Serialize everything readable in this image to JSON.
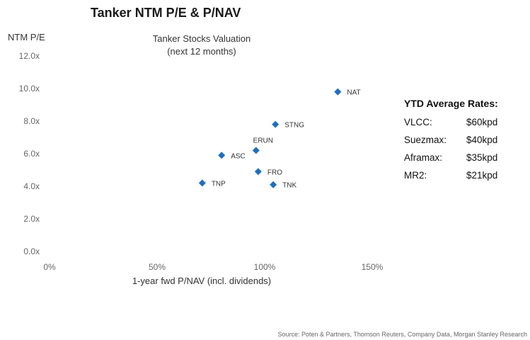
{
  "title": "Tanker NTM P/E & P/NAV",
  "source": "Source: Poten & Partners, Thomson Reuters, Company Data, Morgan Stanley Research",
  "chart_data": {
    "type": "scatter",
    "title": "Tanker Stocks Valuation",
    "subtitle": "(next 12 months)",
    "xlabel": "1-year fwd P/NAV (incl. dividends)",
    "ylabel": "NTM P/E",
    "xlim": [
      0,
      150
    ],
    "ylim": [
      0,
      12
    ],
    "x_ticks": [
      "0%",
      "50%",
      "100%",
      "150%"
    ],
    "y_ticks": [
      "0.0x",
      "2.0x",
      "4.0x",
      "6.0x",
      "8.0x",
      "10.0x",
      "12.0x"
    ],
    "grid": false,
    "marker": "diamond",
    "color": "#1f6fbf",
    "points": [
      {
        "label": "NAT",
        "x": 134,
        "y": 9.8
      },
      {
        "label": "STNG",
        "x": 105,
        "y": 7.8
      },
      {
        "label": "ERUN",
        "x": 96,
        "y": 6.2
      },
      {
        "label": "ASC",
        "x": 80,
        "y": 5.9
      },
      {
        "label": "FRO",
        "x": 97,
        "y": 4.9
      },
      {
        "label": "TNP",
        "x": 71,
        "y": 4.2
      },
      {
        "label": "TNK",
        "x": 104,
        "y": 4.1
      }
    ]
  },
  "rates": {
    "header": "YTD Average Rates:",
    "rows": [
      {
        "name": "VLCC:",
        "value": "$60kpd"
      },
      {
        "name": "Suezmax:",
        "value": "$40kpd"
      },
      {
        "name": "Aframax:",
        "value": "$35kpd"
      },
      {
        "name": "MR2:",
        "value": "$21kpd"
      }
    ]
  }
}
